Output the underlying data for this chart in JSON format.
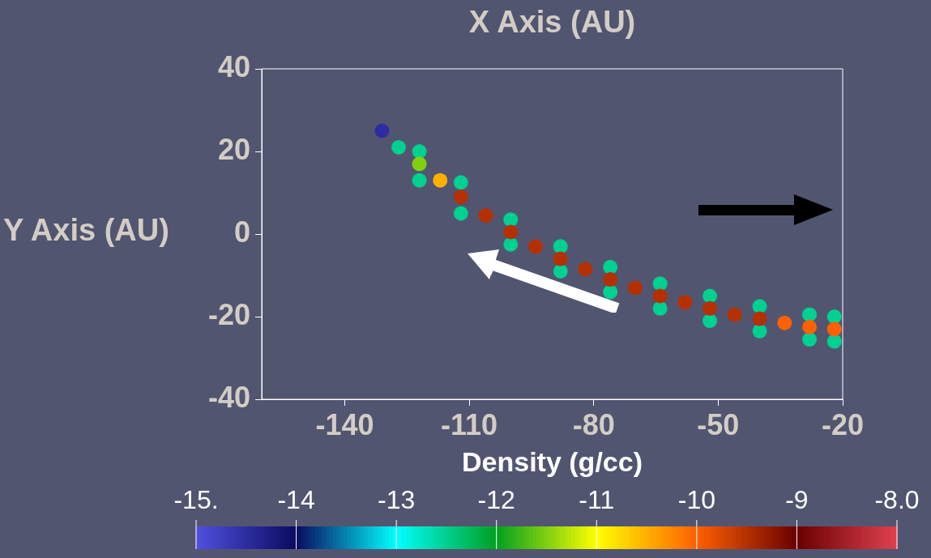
{
  "chart_data": {
    "type": "scatter",
    "xlabel": "X Axis (AU)",
    "ylabel": "Y Axis (AU)",
    "clabel": "Density (g/cc)",
    "x": [
      -122,
      -112,
      -100,
      -88,
      -76,
      -64,
      -52,
      -40,
      -28,
      -22,
      -122,
      -112,
      -100,
      -88,
      -76,
      -64,
      -52,
      -40,
      -28,
      -22,
      -131,
      -127,
      -122,
      -117,
      -112,
      -106,
      -100,
      -94,
      -88,
      -82,
      -76,
      -70,
      -64,
      -58,
      -52,
      -46,
      -40,
      -34,
      -28,
      -22
    ],
    "values": [
      20,
      12.5,
      3.5,
      -3,
      -8,
      -12,
      -15,
      -17.5,
      -19.5,
      -20,
      13,
      5,
      -2.5,
      -9,
      -14,
      -18,
      -21,
      -23.5,
      -25.5,
      -26,
      25,
      21,
      17,
      13,
      9,
      4.5,
      0.5,
      -3,
      -6,
      -8.5,
      -11,
      -13,
      -15,
      -16.5,
      -18,
      -19.5,
      -20.5,
      -21.5,
      -22.5,
      -23
    ],
    "cvalues": [
      -12.5,
      -12.5,
      -12.5,
      -12.5,
      -12.5,
      -12.5,
      -12.5,
      -12.5,
      -12.5,
      -12.5,
      -12.5,
      -12.5,
      -12.5,
      -12.5,
      -12.5,
      -12.5,
      -12.5,
      -12.5,
      -12.5,
      -12.5,
      -14.5,
      -12.5,
      -11.5,
      -10.5,
      -9.5,
      -9.5,
      -9.5,
      -9.5,
      -9.5,
      -9.5,
      -9.5,
      -9.5,
      -9.5,
      -9.5,
      -9.5,
      -9.5,
      -9.5,
      -10,
      -10,
      -10
    ],
    "xlim": [
      -160,
      -20
    ],
    "ylim": [
      -40,
      40
    ],
    "xticks": [
      -140,
      -110,
      -80,
      -50,
      -20
    ],
    "yticks": [
      -40,
      -20,
      0,
      20,
      40
    ],
    "clim": [
      -15,
      -8
    ],
    "cticks": [
      {
        "value": -15,
        "label": "-15."
      },
      -14,
      -13,
      -12,
      -11,
      -10,
      -9,
      {
        "value": -8,
        "label": "-8.0"
      }
    ],
    "marker": "circle",
    "grid": false,
    "legend": false
  }
}
